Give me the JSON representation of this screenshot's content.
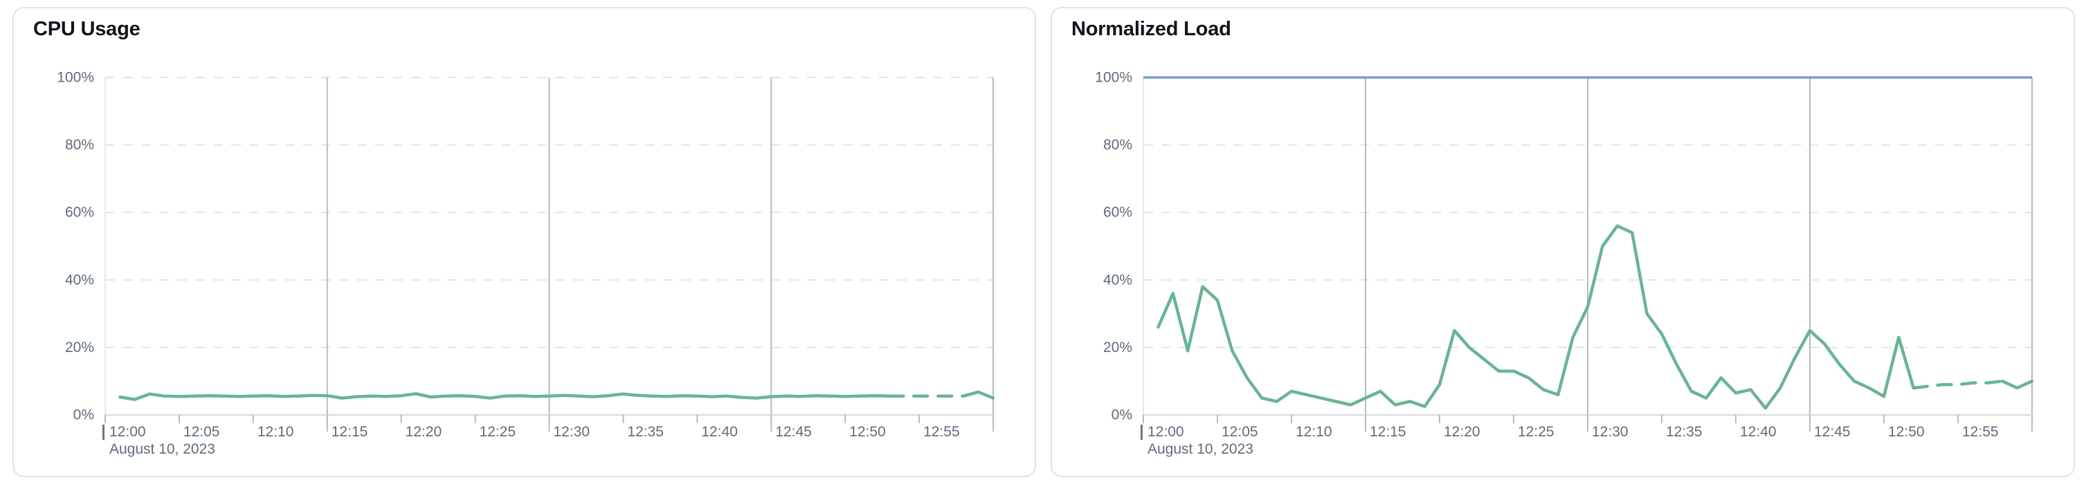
{
  "page": {
    "background": "#ffffff",
    "panel_border_color": "#dfe3ec"
  },
  "colors": {
    "title_text": "#10151c",
    "axis_label_text": "#5f6b7a",
    "grid_dashed": "#e0e4eb",
    "grid_major": "#b6bbc2",
    "axis_line": "#d5d9df",
    "axis_left_line": "#e4e7ee",
    "start_tick_bar": "#6e7683",
    "series_green": "#69b493",
    "series_blue": "#7d9dc9"
  },
  "chart_data": [
    {
      "type": "line",
      "title": "CPU Usage",
      "date_label": "August 10, 2023",
      "ylim": [
        0,
        100
      ],
      "y_ticks": [
        "0%",
        "20%",
        "40%",
        "60%",
        "80%",
        "100%"
      ],
      "x_tick_labels": [
        "12:00",
        "12:05",
        "12:10",
        "12:15",
        "12:20",
        "12:25",
        "12:30",
        "12:35",
        "12:40",
        "12:45",
        "12:50",
        "12:55"
      ],
      "x_tick_minutes": [
        0,
        5,
        10,
        15,
        20,
        25,
        30,
        35,
        40,
        45,
        50,
        55
      ],
      "major_gridline_minutes": [
        15,
        30,
        45,
        60
      ],
      "grid": "dashed-horizontal",
      "legend_position": "none",
      "x_range_minutes": [
        0,
        60
      ],
      "x_minutes": [
        1,
        2,
        3,
        4,
        5,
        6,
        7,
        8,
        9,
        10,
        11,
        12,
        13,
        14,
        15,
        16,
        17,
        18,
        19,
        20,
        21,
        22,
        23,
        24,
        25,
        26,
        27,
        28,
        29,
        30,
        31,
        32,
        33,
        34,
        35,
        36,
        37,
        38,
        39,
        40,
        41,
        42,
        43,
        44,
        45,
        46,
        47,
        48,
        49,
        50,
        51,
        52,
        53,
        54,
        55,
        56,
        57,
        58,
        59,
        60
      ],
      "series": [
        {
          "name": "cpu-usage",
          "color": "#69b493",
          "style": "solid-with-gap-dashes",
          "dashed_from_minute": 53,
          "dashed_to_minute": 58,
          "values": [
            5.3,
            4.6,
            6.2,
            5.6,
            5.5,
            5.6,
            5.7,
            5.6,
            5.5,
            5.6,
            5.7,
            5.5,
            5.6,
            5.8,
            5.7,
            5.0,
            5.4,
            5.6,
            5.5,
            5.7,
            6.3,
            5.3,
            5.6,
            5.7,
            5.5,
            5.0,
            5.6,
            5.7,
            5.5,
            5.6,
            5.8,
            5.6,
            5.4,
            5.7,
            6.2,
            5.8,
            5.6,
            5.5,
            5.7,
            5.6,
            5.4,
            5.6,
            5.2,
            5.0,
            5.4,
            5.6,
            5.5,
            5.7,
            5.6,
            5.5,
            5.6,
            5.7,
            5.6,
            5.6,
            5.6,
            5.6,
            5.6,
            5.6,
            6.8,
            5.0
          ]
        }
      ]
    },
    {
      "type": "line",
      "title": "Normalized Load",
      "date_label": "August 10, 2023",
      "ylim": [
        0,
        100
      ],
      "y_ticks": [
        "0%",
        "20%",
        "40%",
        "60%",
        "80%",
        "100%"
      ],
      "x_tick_labels": [
        "12:00",
        "12:05",
        "12:10",
        "12:15",
        "12:20",
        "12:25",
        "12:30",
        "12:35",
        "12:40",
        "12:45",
        "12:50",
        "12:55"
      ],
      "x_tick_minutes": [
        0,
        5,
        10,
        15,
        20,
        25,
        30,
        35,
        40,
        45,
        50,
        55
      ],
      "major_gridline_minutes": [
        15,
        30,
        45,
        60
      ],
      "grid": "dashed-horizontal",
      "legend_position": "none",
      "x_range_minutes": [
        0,
        60
      ],
      "x_minutes": [
        1,
        2,
        3,
        4,
        5,
        6,
        7,
        8,
        9,
        10,
        11,
        12,
        13,
        14,
        15,
        16,
        17,
        18,
        19,
        20,
        21,
        22,
        23,
        24,
        25,
        26,
        27,
        28,
        29,
        30,
        31,
        32,
        33,
        34,
        35,
        36,
        37,
        38,
        39,
        40,
        41,
        42,
        43,
        44,
        45,
        46,
        47,
        48,
        49,
        50,
        51,
        52,
        53,
        54,
        55,
        56,
        57,
        58,
        59,
        60
      ],
      "series": [
        {
          "name": "limit-100-percent",
          "color": "#7d9dc9",
          "style": "horizontal-constant",
          "constant_value": 100
        },
        {
          "name": "normalized-load",
          "color": "#69b493",
          "style": "solid-with-gap-dashes",
          "dashed_from_minute": 52,
          "dashed_to_minute": 58,
          "values": [
            26,
            36,
            19,
            38,
            34,
            19,
            11,
            5,
            4,
            7,
            6,
            5,
            4,
            3,
            5,
            7,
            3,
            4,
            2.5,
            9,
            25,
            20,
            16.5,
            13,
            13,
            11,
            7.5,
            6,
            23,
            32,
            50,
            56,
            54,
            30,
            24,
            15,
            7,
            5,
            11,
            6.5,
            7.5,
            2,
            8,
            17,
            25,
            21,
            15,
            10,
            8,
            5.5,
            23,
            8,
            8.5,
            9,
            9,
            9.5,
            9.5,
            10,
            8,
            10
          ]
        }
      ]
    }
  ]
}
